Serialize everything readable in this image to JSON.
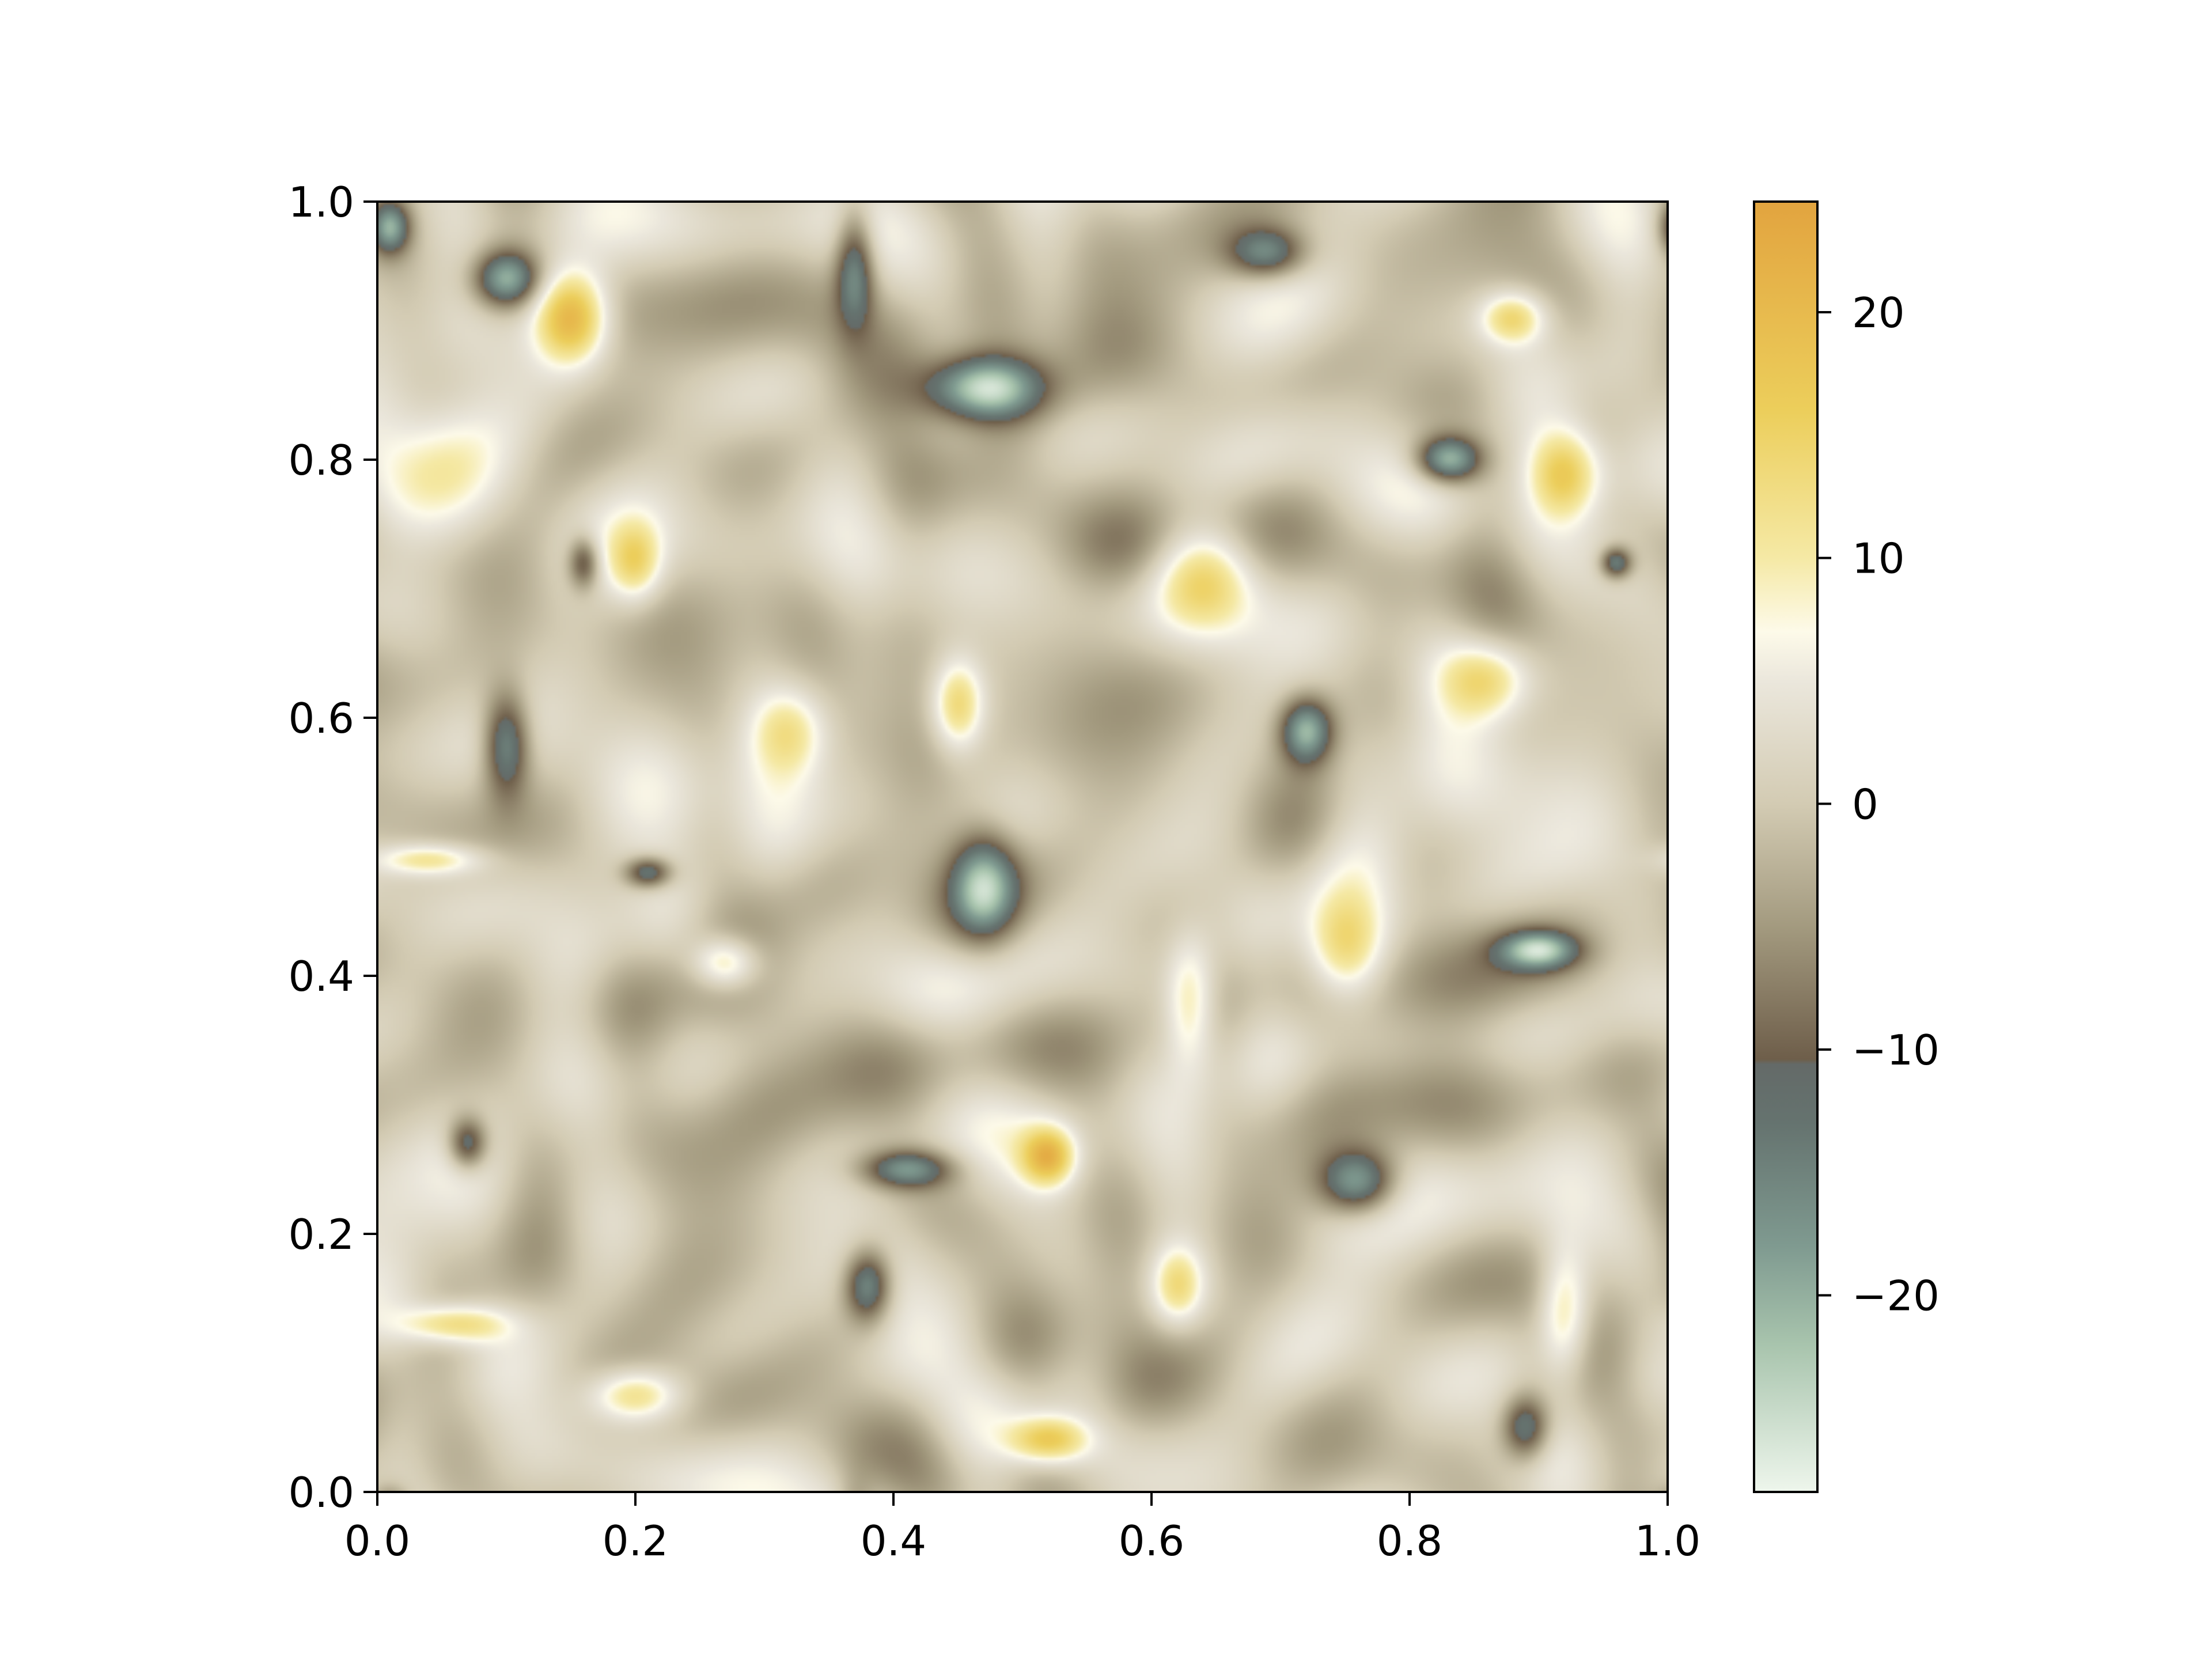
{
  "chart_data": {
    "type": "heatmap",
    "title": "",
    "xlabel": "",
    "ylabel": "",
    "xlim": [
      0.0,
      1.0
    ],
    "ylim": [
      0.0,
      1.0
    ],
    "x_ticks": [
      "0.0",
      "0.2",
      "0.4",
      "0.6",
      "0.8",
      "1.0"
    ],
    "y_ticks": [
      "0.0",
      "0.2",
      "0.4",
      "0.6",
      "0.8",
      "1.0"
    ],
    "grid": false,
    "field_description": "turbulent 2D vorticity field with positive (yellow) and negative (grey-green) coherent vortices",
    "colorbar": {
      "range": [
        -28,
        24.5
      ],
      "ticks": [
        -20,
        -10,
        0,
        10,
        20
      ],
      "tick_labels": [
        "−20",
        "−10",
        "0",
        "10",
        "20"
      ],
      "colormap": [
        {
          "value": -28,
          "color": "#eef6ec"
        },
        {
          "value": -22,
          "color": "#a8c4ad"
        },
        {
          "value": -18,
          "color": "#7f9a90"
        },
        {
          "value": -13,
          "color": "#65736f"
        },
        {
          "value": -10.6,
          "color": "#646a68"
        },
        {
          "value": -10.4,
          "color": "#6e5e4a"
        },
        {
          "value": -5,
          "color": "#a39a7f"
        },
        {
          "value": 0,
          "color": "#d3cbb3"
        },
        {
          "value": 5,
          "color": "#ebe7dc"
        },
        {
          "value": 7,
          "color": "#fdfae9"
        },
        {
          "value": 10,
          "color": "#f5e9a5"
        },
        {
          "value": 16,
          "color": "#ecce5b"
        },
        {
          "value": 24.5,
          "color": "#e2a43f"
        }
      ]
    },
    "vortices": [
      {
        "x": 0.47,
        "y": 0.855,
        "strength": -26,
        "rx": 0.045,
        "ry": 0.025
      },
      {
        "x": 0.1,
        "y": 0.94,
        "strength": -20,
        "rx": 0.025,
        "ry": 0.022
      },
      {
        "x": 0.01,
        "y": 0.98,
        "strength": -18,
        "rx": 0.015,
        "ry": 0.02
      },
      {
        "x": 0.15,
        "y": 0.91,
        "strength": 22,
        "rx": 0.028,
        "ry": 0.035
      },
      {
        "x": 0.37,
        "y": 0.95,
        "strength": -16,
        "rx": 0.015,
        "ry": 0.045
      },
      {
        "x": 0.69,
        "y": 0.96,
        "strength": -16,
        "rx": 0.03,
        "ry": 0.02
      },
      {
        "x": 0.83,
        "y": 0.8,
        "strength": -22,
        "rx": 0.025,
        "ry": 0.018
      },
      {
        "x": 0.92,
        "y": 0.79,
        "strength": 18,
        "rx": 0.028,
        "ry": 0.035
      },
      {
        "x": 0.64,
        "y": 0.71,
        "strength": 15,
        "rx": 0.04,
        "ry": 0.04
      },
      {
        "x": 0.2,
        "y": 0.72,
        "strength": 12,
        "rx": 0.02,
        "ry": 0.03
      },
      {
        "x": 0.1,
        "y": 0.58,
        "strength": -18,
        "rx": 0.018,
        "ry": 0.04
      },
      {
        "x": 0.32,
        "y": 0.59,
        "strength": 12,
        "rx": 0.03,
        "ry": 0.035
      },
      {
        "x": 0.45,
        "y": 0.61,
        "strength": 15,
        "rx": 0.02,
        "ry": 0.035
      },
      {
        "x": 0.72,
        "y": 0.59,
        "strength": -20,
        "rx": 0.02,
        "ry": 0.025
      },
      {
        "x": 0.86,
        "y": 0.63,
        "strength": 14,
        "rx": 0.035,
        "ry": 0.03
      },
      {
        "x": 0.47,
        "y": 0.47,
        "strength": -19,
        "rx": 0.025,
        "ry": 0.04
      },
      {
        "x": 0.9,
        "y": 0.42,
        "strength": -20,
        "rx": 0.03,
        "ry": 0.015
      },
      {
        "x": 0.27,
        "y": 0.41,
        "strength": 14,
        "rx": 0.025,
        "ry": 0.02
      },
      {
        "x": 0.75,
        "y": 0.42,
        "strength": 14,
        "rx": 0.03,
        "ry": 0.04
      },
      {
        "x": 0.63,
        "y": 0.38,
        "strength": 12,
        "rx": 0.02,
        "ry": 0.05
      },
      {
        "x": 0.76,
        "y": 0.24,
        "strength": -21,
        "rx": 0.03,
        "ry": 0.025
      },
      {
        "x": 0.41,
        "y": 0.25,
        "strength": -17,
        "rx": 0.035,
        "ry": 0.015
      },
      {
        "x": 0.52,
        "y": 0.26,
        "strength": 18,
        "rx": 0.02,
        "ry": 0.022
      },
      {
        "x": 0.38,
        "y": 0.16,
        "strength": -18,
        "rx": 0.018,
        "ry": 0.028
      },
      {
        "x": 0.2,
        "y": 0.075,
        "strength": 14,
        "rx": 0.035,
        "ry": 0.02
      },
      {
        "x": 0.06,
        "y": 0.13,
        "strength": 14,
        "rx": 0.04,
        "ry": 0.015
      },
      {
        "x": 0.92,
        "y": 0.14,
        "strength": 13,
        "rx": 0.02,
        "ry": 0.05
      },
      {
        "x": 0.52,
        "y": 0.04,
        "strength": 16,
        "rx": 0.03,
        "ry": 0.018
      },
      {
        "x": 0.89,
        "y": 0.05,
        "strength": -16,
        "rx": 0.018,
        "ry": 0.025
      },
      {
        "x": 0.07,
        "y": 0.27,
        "strength": -16,
        "rx": 0.015,
        "ry": 0.02
      },
      {
        "x": 0.88,
        "y": 0.91,
        "strength": 14,
        "rx": 0.025,
        "ry": 0.02
      },
      {
        "x": 0.16,
        "y": 0.72,
        "strength": -14,
        "rx": 0.012,
        "ry": 0.02
      },
      {
        "x": 0.04,
        "y": 0.49,
        "strength": 12,
        "rx": 0.04,
        "ry": 0.012
      },
      {
        "x": 0.21,
        "y": 0.48,
        "strength": -16,
        "rx": 0.018,
        "ry": 0.012
      },
      {
        "x": 0.62,
        "y": 0.16,
        "strength": 12,
        "rx": 0.02,
        "ry": 0.03
      },
      {
        "x": 0.96,
        "y": 0.72,
        "strength": -16,
        "rx": 0.012,
        "ry": 0.012
      },
      {
        "x": 0.58,
        "y": 0.73,
        "strength": -8,
        "rx": 0.05,
        "ry": 0.04
      },
      {
        "x": 0.3,
        "y": 0.3,
        "strength": -8,
        "rx": 0.06,
        "ry": 0.05
      },
      {
        "x": 0.82,
        "y": 0.34,
        "strength": -6,
        "rx": 0.06,
        "ry": 0.06
      },
      {
        "x": 0.05,
        "y": 0.8,
        "strength": 6,
        "rx": 0.05,
        "ry": 0.06
      }
    ]
  }
}
